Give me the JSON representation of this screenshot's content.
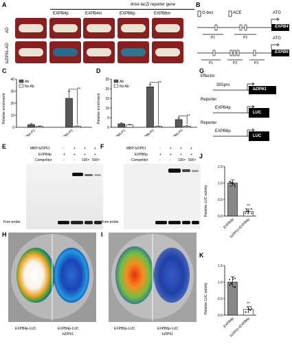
{
  "panels": {
    "A": "A",
    "B": "B",
    "C": "C",
    "D": "D",
    "E": "E",
    "F": "F",
    "G": "G",
    "H": "H",
    "I": "I",
    "J": "J",
    "K": "K"
  },
  "panel_a": {
    "header": "drive lacZi reporter gene",
    "columns": [
      "EXPB4p",
      "EXPB4m",
      "EXPB6p",
      "EXPB6m"
    ],
    "rows": [
      "AD",
      "bZIP61-AD"
    ]
  },
  "panel_b": {
    "legend_gbox": "G-box",
    "legend_ace": "ACE",
    "atg": "ATG",
    "gene1": "EXPB4",
    "gene2": "EXPB6",
    "regions1": [
      "P1",
      "P2"
    ],
    "regions2": [
      "P1",
      "P2",
      "P3"
    ]
  },
  "panel_g": {
    "effector": "Effector",
    "reporter1": "Reporter",
    "reporter2": "Reporter",
    "promoter": "35Spro",
    "gene": "bZIP61",
    "p4": "EXPB4p",
    "p6": "EXPB6p",
    "luc": "LUC"
  },
  "panel_e": {
    "row_labels": [
      "MBP-bZIP61",
      "EXPB4p",
      "Competitor"
    ],
    "row1": [
      "-",
      "+",
      "+",
      "+"
    ],
    "row2": [
      "+",
      "+",
      "+",
      "+"
    ],
    "row3": [
      "-",
      "-",
      "100×",
      "500×"
    ],
    "free_probe": "Free probe"
  },
  "panel_f": {
    "row_labels": [
      "MBP-bZIP61",
      "EXPB6p",
      "Competitor"
    ],
    "row1": [
      "-",
      "+",
      "+",
      "+"
    ],
    "row2": [
      "+",
      "+",
      "+",
      "+"
    ],
    "row3": [
      "-",
      "-",
      "100×",
      "500×"
    ],
    "free_probe": "Free probe"
  },
  "panel_h": {
    "left": "EXPB4p-LUC",
    "right1": "EXPB4p-LUC",
    "right2": "bZIP61"
  },
  "panel_i": {
    "left": "EXPB6p-LUC",
    "right1": "EXPB6p-LUC",
    "right2": "bZIP61"
  },
  "colors": {
    "ab": "#595959",
    "noab": "#ffffff",
    "bar_j": "#888888",
    "red_plate": "#8b1e1e",
    "blue_colony": "#2a6a8a"
  },
  "chart_data": [
    {
      "id": "C",
      "type": "bar",
      "ylabel": "Relative enrichment",
      "categories": [
        "EXPB4-P1",
        "EXPB4-P2"
      ],
      "ylim": [
        0,
        40
      ],
      "yticks": [
        0,
        10,
        20,
        30,
        40
      ],
      "series": [
        {
          "name": "Ab",
          "values": [
            2.2,
            24
          ]
        },
        {
          "name": "No Ab",
          "values": [
            0.8,
            0.9
          ]
        }
      ],
      "errors": [
        [
          0.8,
          6
        ],
        [
          0.3,
          0.3
        ]
      ],
      "annotations": [
        "**"
      ]
    },
    {
      "id": "D",
      "type": "bar",
      "ylabel": "Relative enrichment",
      "categories": [
        "EXPB6-P1",
        "EXPB6-P2",
        "EXPB6-P3"
      ],
      "ylim": [
        0,
        25
      ],
      "yticks": [
        0,
        5,
        10,
        15,
        20,
        25
      ],
      "series": [
        {
          "name": "Ab",
          "values": [
            1.8,
            21,
            4
          ]
        },
        {
          "name": "No Ab",
          "values": [
            1.2,
            0.5,
            0.6
          ]
        }
      ],
      "errors": [
        [
          0.4,
          1.2,
          0.9
        ],
        [
          0.3,
          0.2,
          0.2
        ]
      ],
      "annotations": [
        "**",
        "**"
      ]
    },
    {
      "id": "J",
      "type": "bar",
      "ylabel": "Relative LUC activity",
      "categories": [
        "EXPB4p",
        "bZIP61+EXPB4p"
      ],
      "ylim": [
        0,
        1.5
      ],
      "yticks": [
        0.0,
        0.5,
        1.0,
        1.5
      ],
      "values": [
        1.0,
        0.14
      ],
      "errors": [
        0.1,
        0.07
      ],
      "annotations": [
        "**"
      ]
    },
    {
      "id": "K",
      "type": "bar",
      "ylabel": "Relative LUC activity",
      "categories": [
        "EXPB6p",
        "bZIP61+EXPB6p"
      ],
      "ylim": [
        0,
        1.5
      ],
      "yticks": [
        0.0,
        0.5,
        1.0,
        1.5
      ],
      "values": [
        1.0,
        0.17
      ],
      "errors": [
        0.16,
        0.08
      ],
      "annotations": [
        "**"
      ]
    }
  ]
}
